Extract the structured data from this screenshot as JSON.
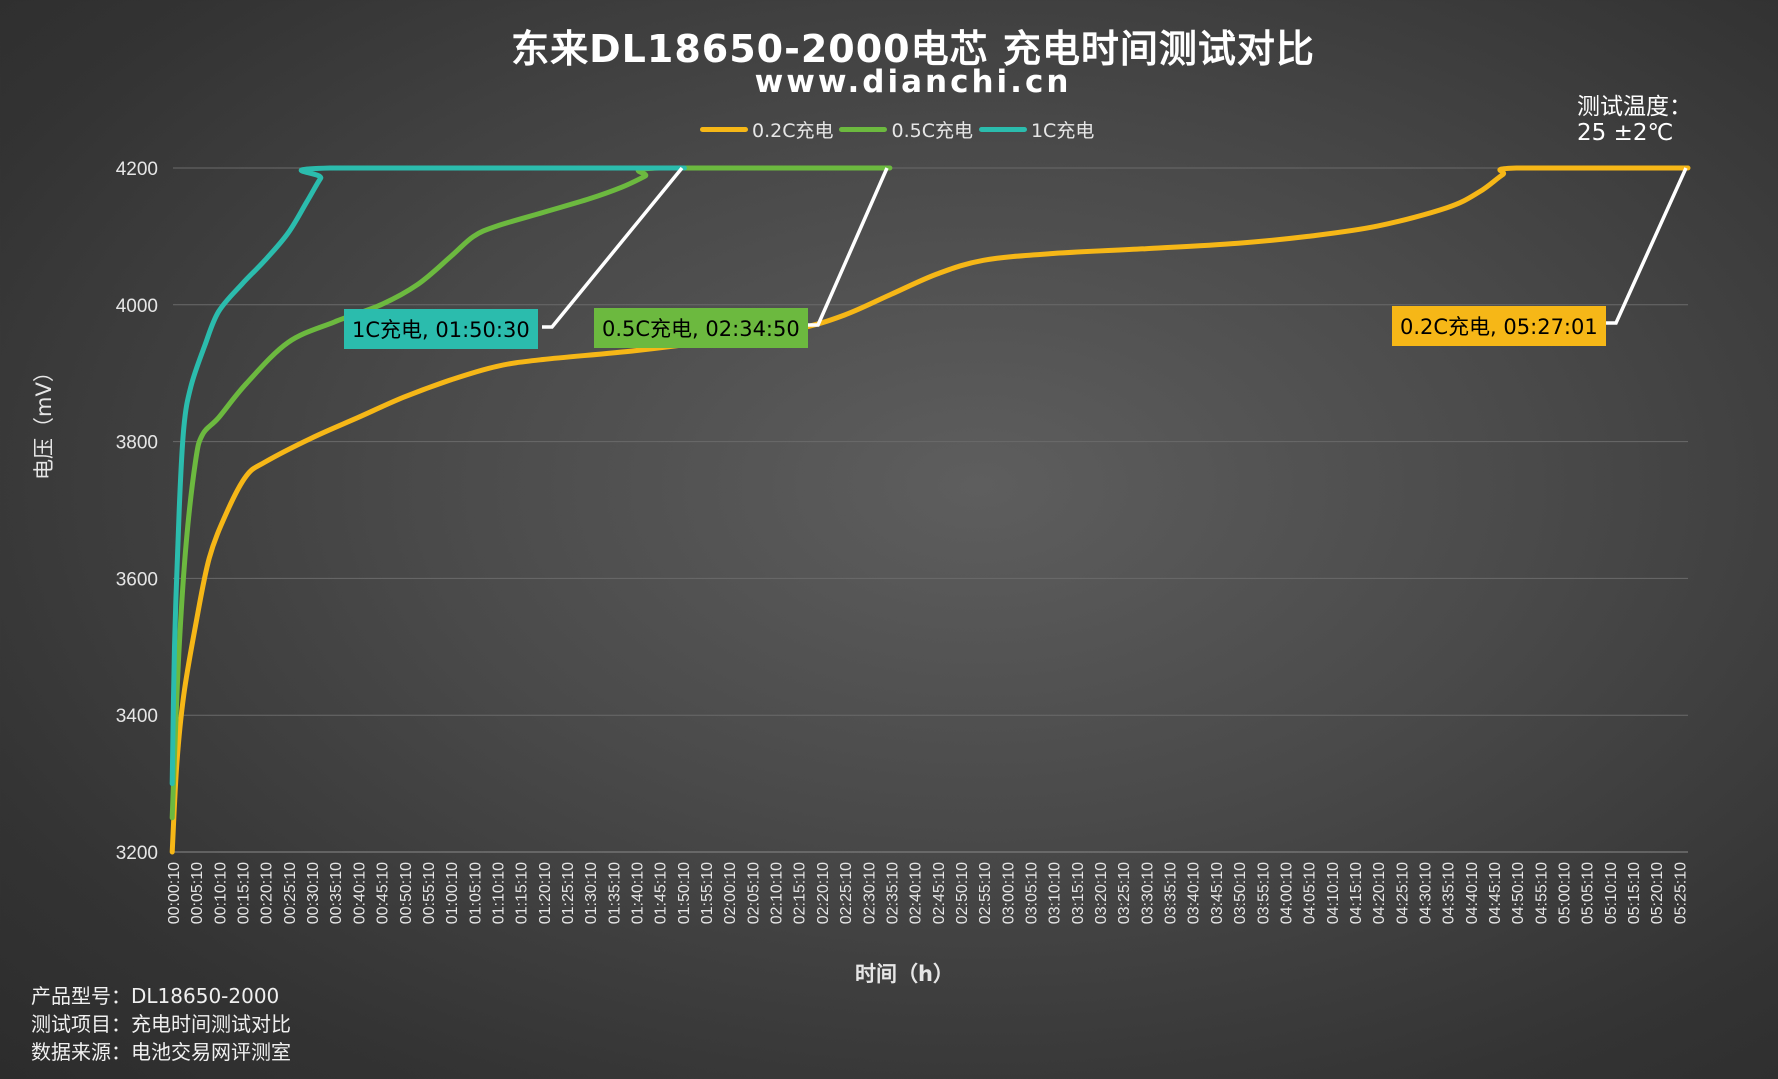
{
  "title": "东来DL18650-2000电芯 充电时间测试对比",
  "subtitle": "www.dianchi.cn",
  "temperature": {
    "label": "测试温度：",
    "value": "25 ±2℃"
  },
  "legend": [
    {
      "name": "0.2C充电",
      "color": "#f6b717"
    },
    {
      "name": "0.5C充电",
      "color": "#6cb93f"
    },
    {
      "name": "1C充电",
      "color": "#2bbcad"
    }
  ],
  "footer": [
    "产品型号：DL18650-2000",
    "测试项目：充电时间测试对比",
    "数据来源：电池交易网评测室"
  ],
  "callouts": {
    "c1": "1C充电, 01:50:30",
    "c05": "0.5C充电, 02:34:50",
    "c02": "0.2C充电, 05:27:01"
  },
  "chart_data": {
    "type": "line",
    "xlabel": "时间（h）",
    "ylabel": "电压（mV）",
    "ylim": [
      3200,
      4200
    ],
    "yticks": [
      3200,
      3400,
      3600,
      3800,
      4000,
      4200
    ],
    "grid": true,
    "legend_position": "top",
    "x_ticks": [
      "00:00:10",
      "00:05:10",
      "00:10:10",
      "00:15:10",
      "00:20:10",
      "00:25:10",
      "00:30:10",
      "00:35:10",
      "00:40:10",
      "00:45:10",
      "00:50:10",
      "00:55:10",
      "01:00:10",
      "01:05:10",
      "01:10:10",
      "01:15:10",
      "01:20:10",
      "01:25:10",
      "01:30:10",
      "01:35:10",
      "01:40:10",
      "01:45:10",
      "01:50:10",
      "01:55:10",
      "02:00:10",
      "02:05:10",
      "02:10:10",
      "02:15:10",
      "02:20:10",
      "02:25:10",
      "02:30:10",
      "02:35:10",
      "02:40:10",
      "02:45:10",
      "02:50:10",
      "02:55:10",
      "03:00:10",
      "03:05:10",
      "03:10:10",
      "03:15:10",
      "03:20:10",
      "03:25:10",
      "03:30:10",
      "03:35:10",
      "03:40:10",
      "03:45:10",
      "03:50:10",
      "03:55:10",
      "04:00:10",
      "04:05:10",
      "04:10:10",
      "04:15:10",
      "04:20:10",
      "04:25:10",
      "04:30:10",
      "04:35:10",
      "04:40:10",
      "04:45:10",
      "04:50:10",
      "04:55:10",
      "05:00:10",
      "05:05:10",
      "05:10:10",
      "05:15:10",
      "05:20:10",
      "05:25:10"
    ],
    "series": [
      {
        "name": "0.2C充电",
        "color": "#f6b717",
        "x": [
          "00:00:00",
          "00:01:00",
          "00:02:30",
          "00:05:00",
          "00:08:00",
          "00:12:00",
          "00:16:00",
          "00:20:00",
          "00:30:00",
          "00:40:00",
          "00:50:00",
          "01:00:00",
          "01:10:00",
          "01:20:00",
          "01:40:00",
          "02:00:00",
          "02:15:00",
          "02:25:00",
          "02:35:00",
          "02:45:00",
          "02:55:00",
          "03:10:00",
          "03:30:00",
          "03:50:00",
          "04:05:00",
          "04:20:00",
          "04:35:00",
          "04:42:00",
          "04:47:00",
          "04:50:00",
          "05:27:01"
        ],
        "values": [
          3200,
          3330,
          3430,
          3530,
          3630,
          3700,
          3750,
          3770,
          3805,
          3835,
          3865,
          3890,
          3910,
          3920,
          3933,
          3950,
          3965,
          3985,
          4015,
          4045,
          4065,
          4075,
          4082,
          4090,
          4100,
          4115,
          4142,
          4165,
          4190,
          4200,
          4200
        ]
      },
      {
        "name": "0.5C充电",
        "color": "#6cb93f",
        "x": [
          "00:00:00",
          "00:00:30",
          "00:01:30",
          "00:03:00",
          "00:05:00",
          "00:06:30",
          "00:10:00",
          "00:16:00",
          "00:25:00",
          "00:35:00",
          "00:45:00",
          "00:53:00",
          "01:00:00",
          "01:05:00",
          "01:10:00",
          "01:20:00",
          "01:30:00",
          "01:37:00",
          "01:42:00",
          "01:45:00",
          "02:34:50"
        ],
        "values": [
          3250,
          3340,
          3500,
          3650,
          3770,
          3810,
          3835,
          3885,
          3945,
          3975,
          4000,
          4030,
          4070,
          4100,
          4115,
          4135,
          4155,
          4172,
          4188,
          4200,
          4200
        ]
      },
      {
        "name": "1C充电",
        "color": "#2bbcad",
        "x": [
          "00:00:00",
          "00:00:30",
          "00:01:30",
          "00:02:30",
          "00:04:00",
          "00:07:00",
          "00:10:00",
          "00:15:00",
          "00:20:00",
          "00:25:00",
          "00:29:00",
          "00:32:00",
          "00:34:00",
          "01:50:30"
        ],
        "values": [
          3300,
          3500,
          3700,
          3820,
          3880,
          3940,
          3990,
          4030,
          4065,
          4105,
          4150,
          4185,
          4200,
          4200
        ]
      }
    ]
  }
}
